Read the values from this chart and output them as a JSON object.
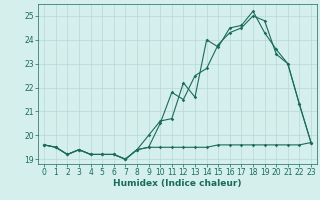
{
  "xlabel": "Humidex (Indice chaleur)",
  "ylabel": "",
  "bg_color": "#d5efec",
  "grid_color": "#b8d8d4",
  "line_color": "#1a6b5a",
  "xlim": [
    -0.5,
    23.5
  ],
  "ylim": [
    18.8,
    25.5
  ],
  "yticks": [
    19,
    20,
    21,
    22,
    23,
    24,
    25
  ],
  "xticks": [
    0,
    1,
    2,
    3,
    4,
    5,
    6,
    7,
    8,
    9,
    10,
    11,
    12,
    13,
    14,
    15,
    16,
    17,
    18,
    19,
    20,
    21,
    22,
    23
  ],
  "line1_y": [
    19.6,
    19.5,
    19.2,
    19.4,
    19.2,
    19.2,
    19.2,
    19.0,
    19.4,
    19.5,
    19.5,
    19.5,
    19.5,
    19.5,
    19.5,
    19.6,
    19.6,
    19.6,
    19.6,
    19.6,
    19.6,
    19.6,
    19.6,
    19.7
  ],
  "line2_y": [
    19.6,
    19.5,
    19.2,
    19.4,
    19.2,
    19.2,
    19.2,
    19.0,
    19.4,
    20.0,
    20.6,
    20.7,
    22.2,
    21.6,
    24.0,
    23.7,
    24.5,
    24.6,
    25.2,
    24.3,
    23.6,
    23.0,
    21.3,
    19.7
  ],
  "line3_y": [
    19.6,
    19.5,
    19.2,
    19.4,
    19.2,
    19.2,
    19.2,
    19.0,
    19.4,
    19.5,
    20.5,
    21.8,
    21.5,
    22.5,
    22.8,
    23.8,
    24.3,
    24.5,
    25.0,
    24.8,
    23.4,
    23.0,
    21.3,
    19.7
  ],
  "marker_size": 1.8,
  "line_width": 0.8,
  "tick_fontsize": 5.5,
  "xlabel_fontsize": 6.5
}
